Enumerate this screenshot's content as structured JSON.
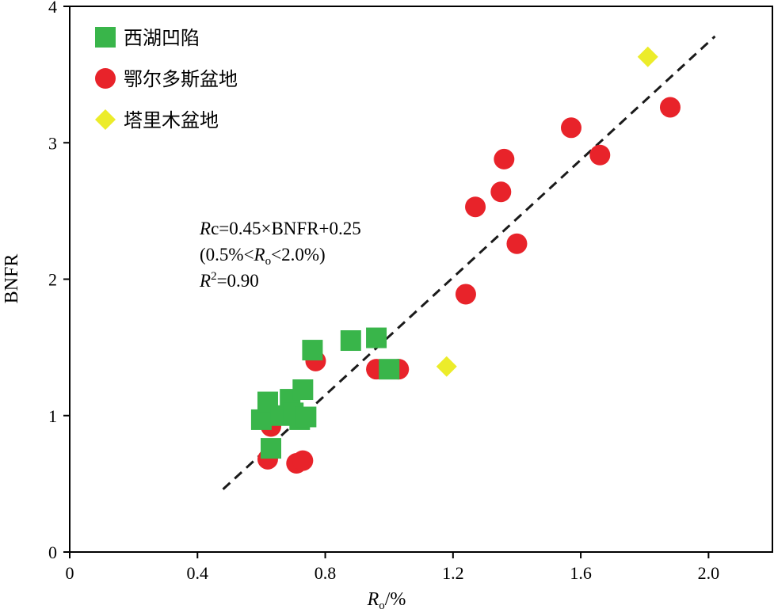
{
  "chart_data": {
    "type": "scatter",
    "xlabel": "%",
    "xlabel_var": "R",
    "xlabel_sub": "o",
    "xlabel_sep": "/",
    "ylabel": "BNFR",
    "xlim": [
      0,
      2.2
    ],
    "ylim": [
      0,
      4
    ],
    "xticks": [
      0,
      0.4,
      0.8,
      1.2,
      1.6,
      2.0
    ],
    "xtick_labels": [
      "0",
      "0.4",
      "0.8",
      "1.2",
      "1.6",
      "2.0"
    ],
    "yticks": [
      0,
      1,
      2,
      3,
      4
    ],
    "ytick_labels": [
      "0",
      "1",
      "2",
      "3",
      "4"
    ],
    "grid": false,
    "legend_position": "top-left",
    "series": [
      {
        "name": "鄂尔多斯盆地",
        "marker": "circle",
        "color": "#e8232a",
        "points": [
          [
            0.62,
            0.68
          ],
          [
            0.63,
            0.92
          ],
          [
            0.71,
            0.65
          ],
          [
            0.73,
            0.67
          ],
          [
            0.77,
            1.4
          ],
          [
            0.96,
            1.34
          ],
          [
            1.03,
            1.34
          ],
          [
            1.24,
            1.89
          ],
          [
            1.27,
            2.53
          ],
          [
            1.35,
            2.64
          ],
          [
            1.36,
            2.88
          ],
          [
            1.4,
            2.26
          ],
          [
            1.57,
            3.11
          ],
          [
            1.66,
            2.91
          ],
          [
            1.88,
            3.26
          ]
        ]
      },
      {
        "name": "西湖凹陷",
        "marker": "square",
        "color": "#39b54a",
        "points": [
          [
            0.6,
            0.97
          ],
          [
            0.62,
            1.1
          ],
          [
            0.63,
            0.76
          ],
          [
            0.66,
            1.0
          ],
          [
            0.69,
            1.12
          ],
          [
            0.7,
            1.02
          ],
          [
            0.72,
            0.97
          ],
          [
            0.73,
            1.19
          ],
          [
            0.74,
            0.99
          ],
          [
            0.76,
            1.48
          ],
          [
            0.88,
            1.55
          ],
          [
            0.96,
            1.57
          ],
          [
            1.0,
            1.34
          ]
        ]
      },
      {
        "name": "塔里木盆地",
        "marker": "diamond",
        "color": "#ecec2a",
        "points": [
          [
            1.18,
            1.36
          ],
          [
            1.81,
            3.63
          ]
        ]
      }
    ],
    "legend_order": [
      "西湖凹陷",
      "鄂尔多斯盆地",
      "塔里木盆地"
    ],
    "trendline": {
      "style": "dashed",
      "color": "#1a1a1a",
      "from": [
        0.48,
        0.46
      ],
      "to": [
        2.02,
        3.78
      ]
    },
    "annotation": {
      "line1_var": "R",
      "line1_rest": "c=0.45×BNFR+0.25",
      "line2_pre": "(0.5%<",
      "line2_var": "R",
      "line2_sub": "o",
      "line2_post": "<2.0%)",
      "line3_var": "R",
      "line3_sup": "2",
      "line3_rest": "=0.90"
    }
  }
}
